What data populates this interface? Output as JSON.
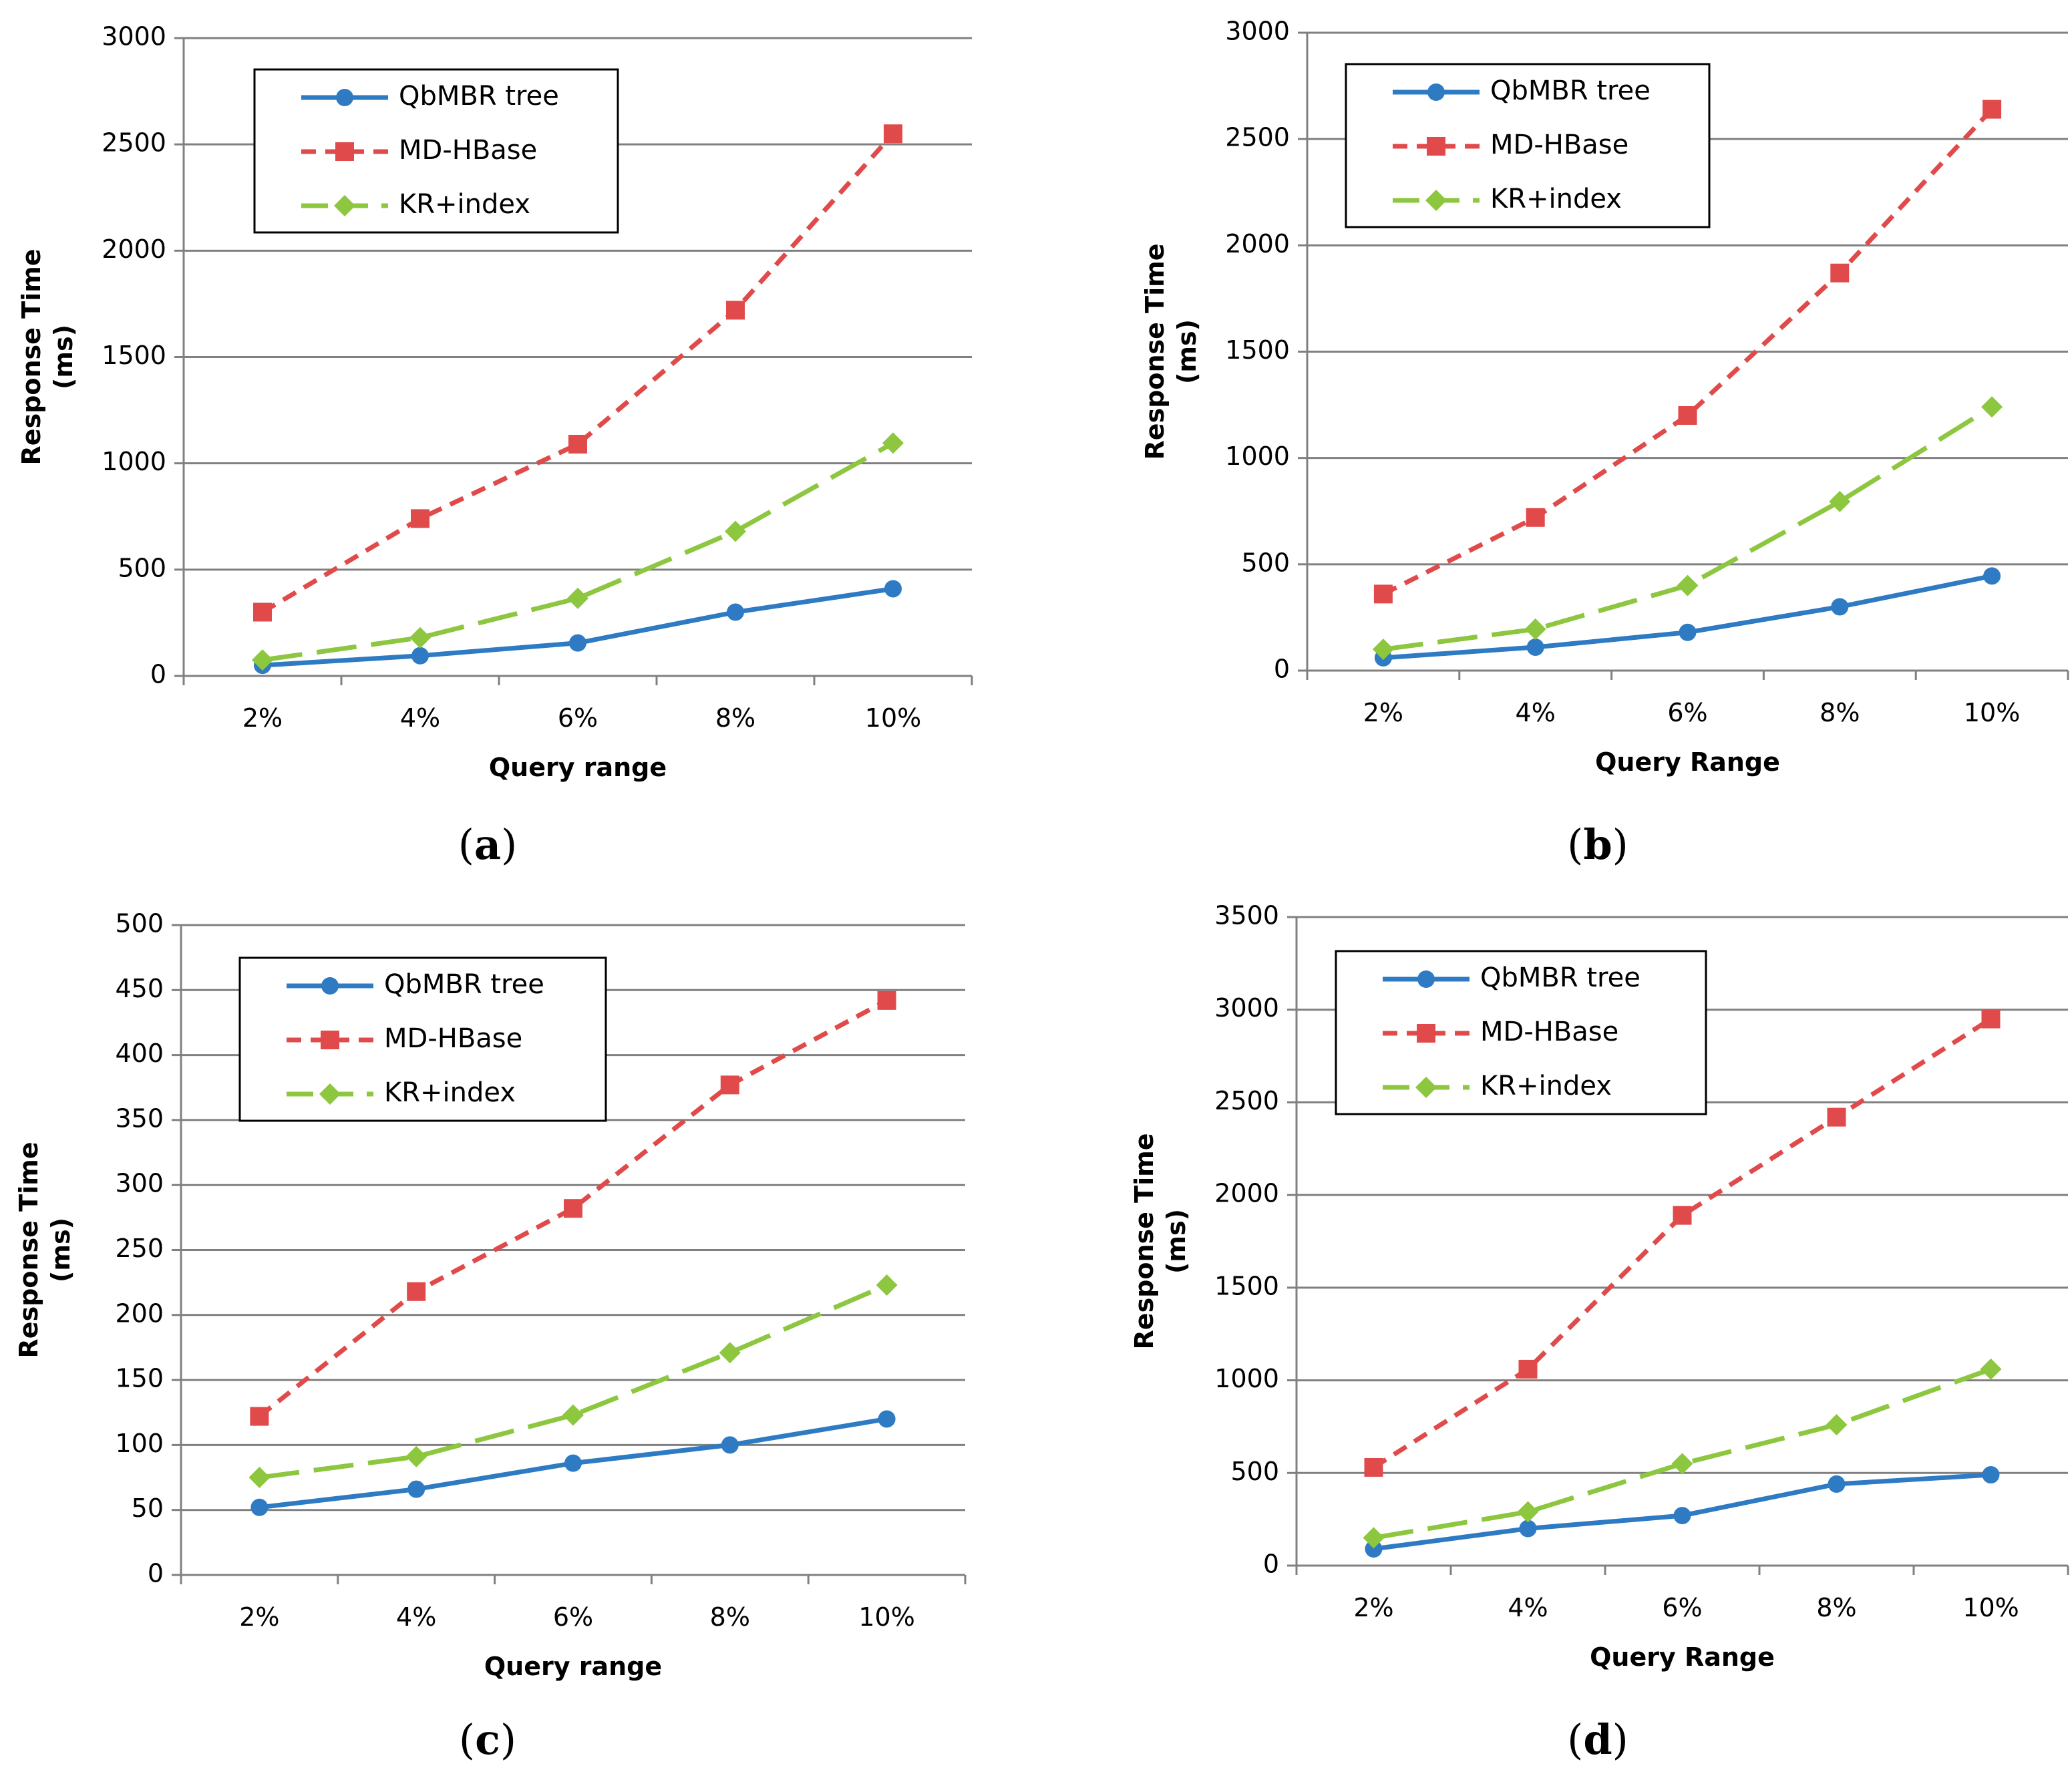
{
  "colors": {
    "qbmbr": "#2e7bc4",
    "mdhbase": "#e04a4a",
    "kr": "#8dc63f",
    "grid": "#808080",
    "axis": "#808080"
  },
  "chart_data": [
    {
      "type": "line",
      "caption": "a",
      "categories": [
        "2%",
        "4%",
        "6%",
        "8%",
        "10%"
      ],
      "xlabel": "Query range",
      "ylabel": [
        "Response Time",
        "(ms)"
      ],
      "ylim": [
        0,
        3000
      ],
      "yticks": [
        "0",
        "500",
        "1000",
        "1500",
        "2000",
        "2500",
        "3000"
      ],
      "grid": true,
      "legend": "top-left",
      "series": [
        {
          "name": "QbMBR tree",
          "values": [
            50,
            95,
            155,
            300,
            410
          ],
          "style": "solid",
          "marker": "circle",
          "color_key": "qbmbr"
        },
        {
          "name": "MD-HBase",
          "values": [
            300,
            740,
            1090,
            1720,
            2550
          ],
          "style": "dash",
          "marker": "square",
          "color_key": "mdhbase"
        },
        {
          "name": "KR+index",
          "values": [
            75,
            180,
            365,
            680,
            1095
          ],
          "style": "longdash",
          "marker": "diamond",
          "color_key": "kr"
        }
      ]
    },
    {
      "type": "line",
      "caption": "b",
      "categories": [
        "2%",
        "4%",
        "6%",
        "8%",
        "10%"
      ],
      "xlabel": "Query Range",
      "ylabel": [
        "Response Time",
        "(ms)"
      ],
      "ylim": [
        0,
        3000
      ],
      "yticks": [
        "0",
        "500",
        "1000",
        "1500",
        "2000",
        "2500",
        "3000"
      ],
      "grid": true,
      "legend": "top-left",
      "series": [
        {
          "name": "QbMBR tree",
          "values": [
            60,
            110,
            180,
            300,
            445
          ],
          "style": "solid",
          "marker": "circle",
          "color_key": "qbmbr"
        },
        {
          "name": "MD-HBase",
          "values": [
            360,
            720,
            1200,
            1870,
            2640
          ],
          "style": "dash",
          "marker": "square",
          "color_key": "mdhbase"
        },
        {
          "name": "KR+index",
          "values": [
            100,
            195,
            400,
            795,
            1240
          ],
          "style": "longdash",
          "marker": "diamond",
          "color_key": "kr"
        }
      ]
    },
    {
      "type": "line",
      "caption": "c",
      "categories": [
        "2%",
        "4%",
        "6%",
        "8%",
        "10%"
      ],
      "xlabel": "Query range",
      "ylabel": [
        "Response Time",
        "(ms)"
      ],
      "ylim": [
        0,
        500
      ],
      "yticks": [
        "0",
        "50",
        "100",
        "150",
        "200",
        "250",
        "300",
        "350",
        "400",
        "450",
        "500"
      ],
      "grid": true,
      "legend": "top-left",
      "series": [
        {
          "name": "QbMBR tree",
          "values": [
            52,
            66,
            86,
            100,
            120
          ],
          "style": "solid",
          "marker": "circle",
          "color_key": "qbmbr"
        },
        {
          "name": "MD-HBase",
          "values": [
            122,
            218,
            282,
            377,
            442
          ],
          "style": "dash",
          "marker": "square",
          "color_key": "mdhbase"
        },
        {
          "name": "KR+index",
          "values": [
            75,
            91,
            123,
            171,
            223
          ],
          "style": "longdash",
          "marker": "diamond",
          "color_key": "kr"
        }
      ]
    },
    {
      "type": "line",
      "caption": "d",
      "categories": [
        "2%",
        "4%",
        "6%",
        "8%",
        "10%"
      ],
      "xlabel": "Query Range",
      "ylabel": [
        "Response Time",
        "(ms)"
      ],
      "ylim": [
        0,
        3500
      ],
      "yticks": [
        "0",
        "500",
        "1000",
        "1500",
        "2000",
        "2500",
        "3000",
        "3500"
      ],
      "grid": true,
      "legend": "top-left",
      "series": [
        {
          "name": "QbMBR tree",
          "values": [
            90,
            200,
            270,
            440,
            490
          ],
          "style": "solid",
          "marker": "circle",
          "color_key": "qbmbr"
        },
        {
          "name": "MD-HBase",
          "values": [
            530,
            1060,
            1890,
            2420,
            2950
          ],
          "style": "dash",
          "marker": "square",
          "color_key": "mdhbase"
        },
        {
          "name": "KR+index",
          "values": [
            150,
            290,
            550,
            760,
            1060
          ],
          "style": "longdash",
          "marker": "diamond",
          "color_key": "kr"
        }
      ]
    }
  ]
}
